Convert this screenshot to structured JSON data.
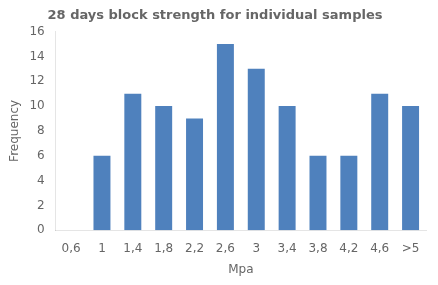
{
  "chart_data": {
    "type": "bar",
    "title": "28 days block strength for individual samples",
    "xlabel": "Mpa",
    "ylabel": "Frequency",
    "categories": [
      "0,6",
      "1",
      "1,4",
      "1,8",
      "2,2",
      "2,6",
      "3",
      "3,4",
      "3,8",
      "4,2",
      "4,6",
      ">5"
    ],
    "values": [
      0,
      6,
      11,
      10,
      9,
      15,
      13,
      10,
      6,
      6,
      11,
      10
    ],
    "color": "#4F81BD",
    "ylim": [
      0,
      16
    ],
    "yticks": [
      0,
      2,
      4,
      6,
      8,
      10,
      12,
      14,
      16
    ],
    "grid": false
  }
}
